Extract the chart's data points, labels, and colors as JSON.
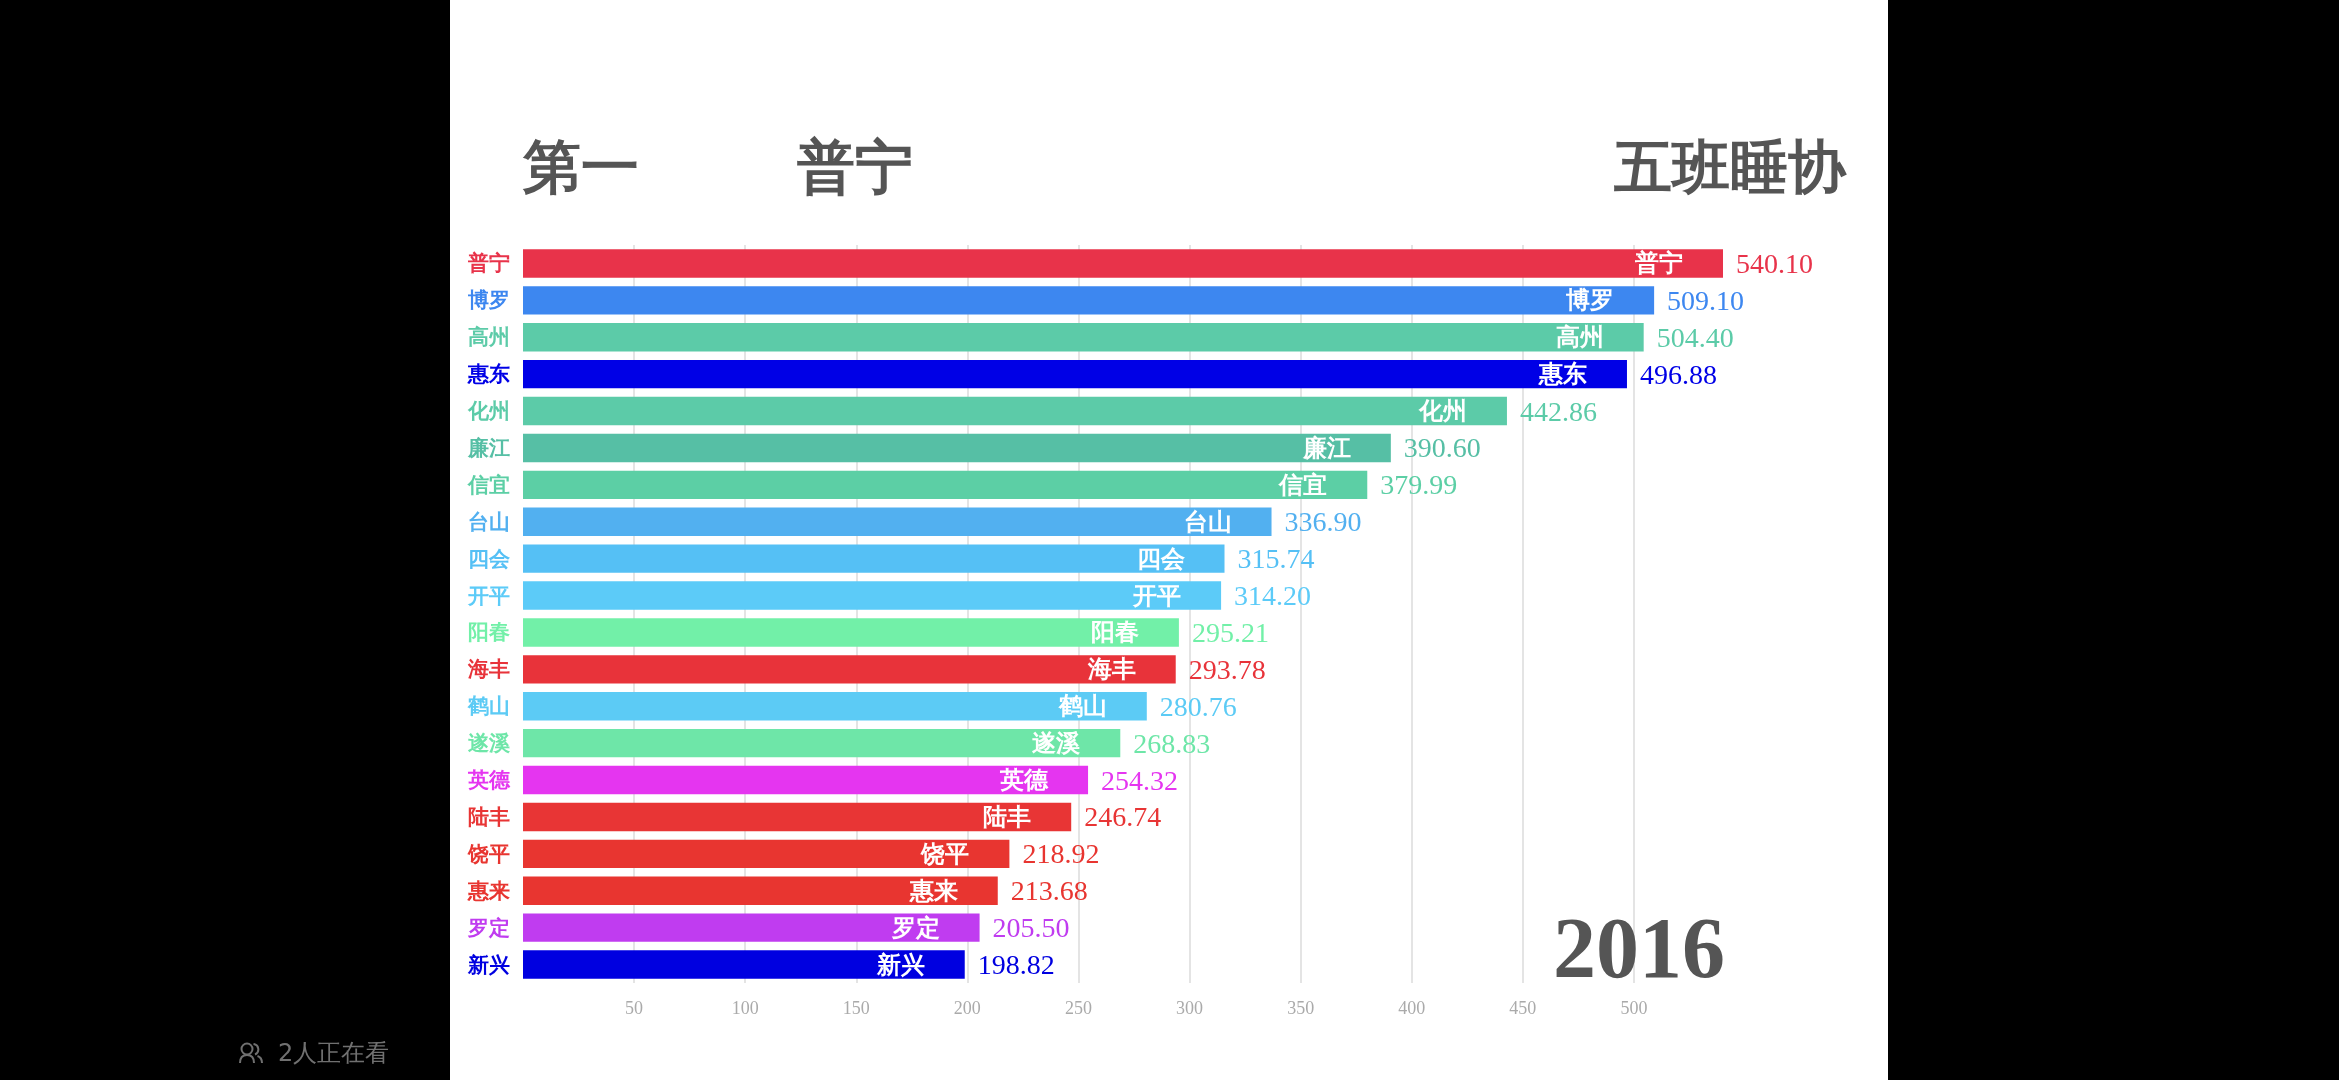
{
  "chart_data": {
    "type": "bar",
    "orientation": "horizontal",
    "title": "第一",
    "subtitle": "普宁",
    "annotations": [
      "五班睡协",
      "2016",
      "2人正在看"
    ],
    "categories": [
      "普宁",
      "博罗",
      "高州",
      "惠东",
      "化州",
      "廉江",
      "信宜",
      "台山",
      "四会",
      "开平",
      "阳春",
      "海丰",
      "鹤山",
      "遂溪",
      "英德",
      "陆丰",
      "饶平",
      "惠来",
      "罗定",
      "新兴"
    ],
    "values": [
      540.1,
      509.1,
      504.4,
      496.88,
      442.86,
      390.6,
      379.99,
      336.9,
      315.74,
      314.2,
      295.21,
      293.78,
      280.76,
      268.83,
      254.32,
      246.74,
      218.92,
      213.68,
      205.5,
      198.82
    ],
    "value_labels": [
      "540.10",
      "509.10",
      "504.40",
      "496.88",
      "442.86",
      "390.60",
      "379.99",
      "336.90",
      "315.74",
      "314.20",
      "295.21",
      "293.78",
      "280.76",
      "268.83",
      "254.32",
      "246.74",
      "218.92",
      "213.68",
      "205.50",
      "198.82"
    ],
    "colors": [
      "#e8334a",
      "#3d87f0",
      "#5ccba8",
      "#0000e6",
      "#5ccba8",
      "#56bfa5",
      "#5ccfa5",
      "#52b0f0",
      "#55c0f5",
      "#5ccbf8",
      "#72f0a8",
      "#e8333a",
      "#5ccbf5",
      "#6ee6a8",
      "#e535f0",
      "#e83535",
      "#e83530",
      "#e83530",
      "#c03cf0",
      "#0000e0"
    ],
    "xlim": [
      0,
      540.1
    ],
    "xticks": [
      50,
      100,
      150,
      200,
      250,
      300,
      350,
      400,
      450,
      500
    ],
    "grid": "x"
  }
}
